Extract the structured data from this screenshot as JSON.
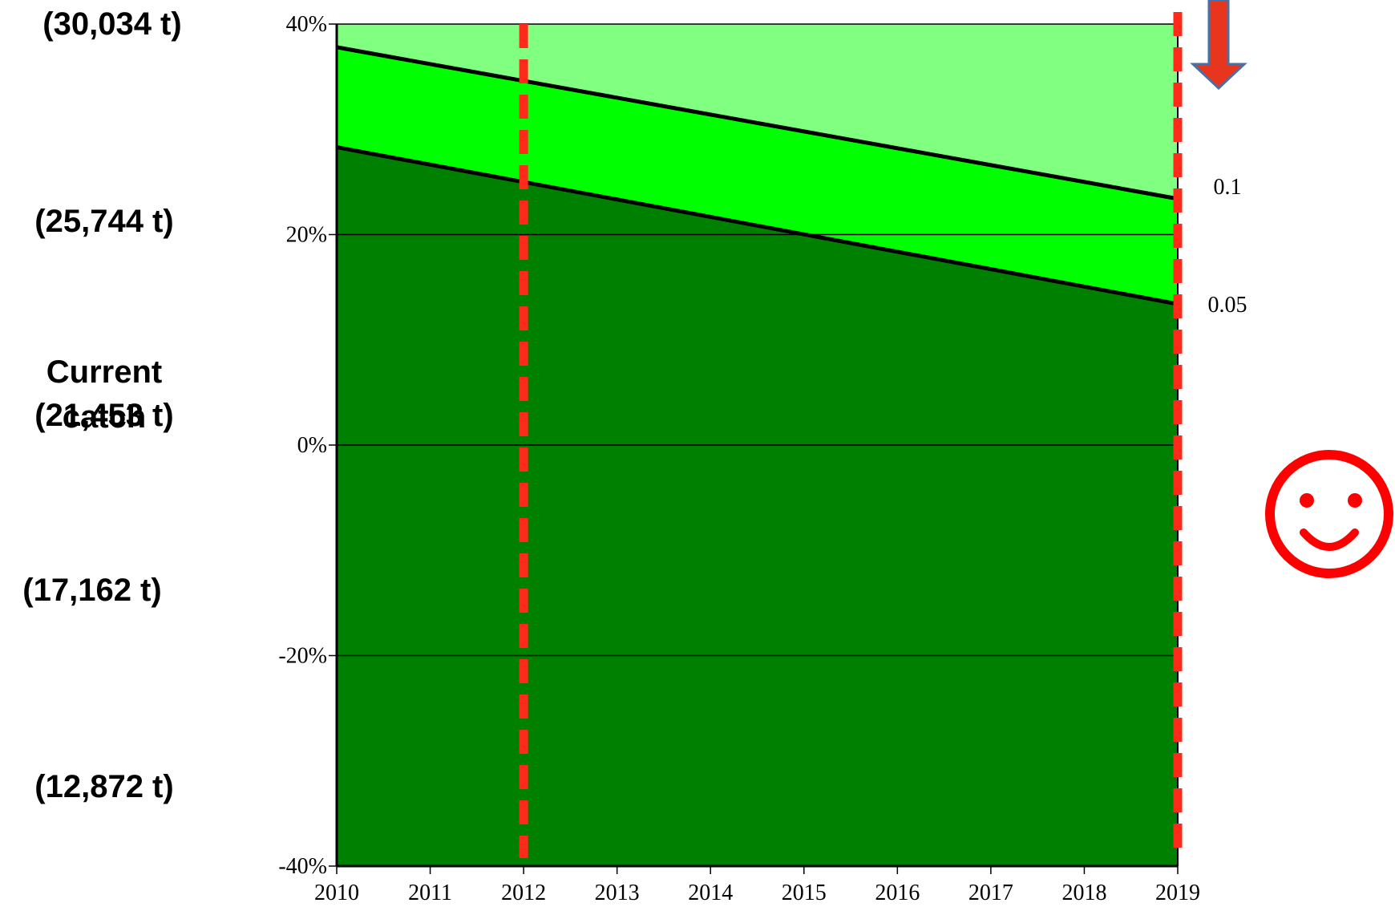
{
  "left_labels": [
    {
      "text": "(30,034 t)"
    },
    {
      "text": "(25,744 t)"
    },
    {
      "text": "Current catch"
    },
    {
      "text": "(21,453 t)"
    },
    {
      "text": "(17,162 t)"
    },
    {
      "text": "(12,872 t)"
    }
  ],
  "chart_data": {
    "type": "area",
    "title": "",
    "xlabel": "",
    "ylabel": "",
    "x_ticks": [
      "2010",
      "2011",
      "2012",
      "2013",
      "2014",
      "2015",
      "2016",
      "2017",
      "2018",
      "2019"
    ],
    "y_ticks": [
      "40%",
      "20%",
      "0%",
      "-20%",
      "-40%"
    ],
    "xlim": [
      2010,
      2019
    ],
    "ylim": [
      -40,
      40
    ],
    "grid": "horizontal",
    "series": [
      {
        "name": "0.1",
        "x": [
          2010,
          2019
        ],
        "y": [
          37.8,
          23.4
        ]
      },
      {
        "name": "0.05",
        "x": [
          2010,
          2019
        ],
        "y": [
          28.3,
          13.4
        ]
      }
    ],
    "band_colors": {
      "above_0.1": "#80ff80",
      "between": "#00ff00",
      "below_0.05": "#008000"
    },
    "vertical_markers": [
      {
        "x": 2012,
        "style": "dashed",
        "color": "#ff2a1a"
      },
      {
        "x": 2019,
        "style": "dashed",
        "color": "#ff2a1a"
      }
    ],
    "line_labels": [
      "0.1",
      "0.05"
    ],
    "annotations": [
      "down-arrow",
      "smiley-face"
    ]
  }
}
